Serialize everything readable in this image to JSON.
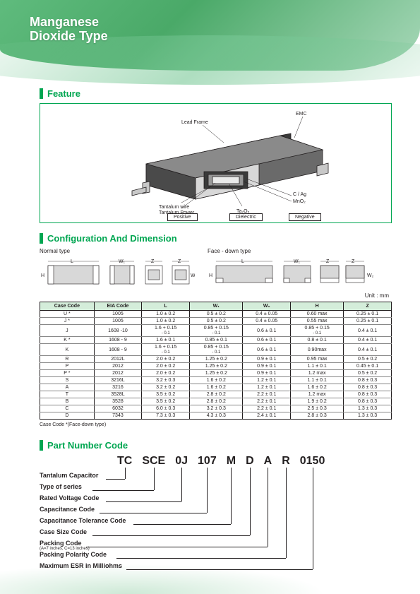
{
  "page": {
    "title_line1": "Manganese",
    "title_line2": "Dioxide Type"
  },
  "feature": {
    "section_title": "Feature",
    "callouts": {
      "lead_frame": "Lead Frame",
      "emc": "EMC",
      "tantalum_wire": "Tantalum wire",
      "tantalum_powder": "Tantalum Power",
      "ta2o5": "Ta₂O₅",
      "c_ag": "C / Ag",
      "mno2": "MnO₂"
    },
    "category_boxes": [
      "Positive",
      "Dielectric",
      "Negative"
    ],
    "diagram_colors": {
      "body_top": "#6a6a6a",
      "body_side": "#4a4a4a",
      "body_front": "#8a8a8a",
      "cut_face": "#d8d8d8",
      "lead": "#c8c8c8",
      "inner_dark": "#3a3a3a",
      "inner_core": "#eaeaea",
      "inner_band1": "#999999",
      "inner_band2": "#bdbdbd",
      "stroke": "#231f20"
    }
  },
  "config": {
    "section_title": "Configuration And Dimension",
    "normal_label": "Normal type",
    "face_down_label": "Face - down type",
    "unit_label": "Unit : mm",
    "headers": [
      "Case Code",
      "EIA Code",
      "L",
      "W₁",
      "W₂",
      "H",
      "Z"
    ],
    "rows": [
      [
        "U *",
        "1005",
        "1.0 ± 0.2",
        "0.5 ± 0.2",
        "0.4 ± 0.05",
        "0.60 max",
        "0.25 ± 0.1"
      ],
      [
        "J *",
        "1005",
        "1.0 ± 0.2",
        "0.5 ± 0.2",
        "0.4 ± 0.05",
        "0.55 max",
        "0.25 ± 0.1"
      ],
      [
        "J",
        "1608 -10",
        "1.6 + 0.15\n- 0.1",
        "0.85 + 0.15\n- 0.1",
        "0.6 ± 0.1",
        "0.85 + 0.15\n- 0.1",
        "0.4 ± 0.1"
      ],
      [
        "K *",
        "1608 - 9",
        "1.6 ± 0.1",
        "0.85 ± 0.1",
        "0.6 ± 0.1",
        "0.8 ± 0.1",
        "0.4 ± 0.1"
      ],
      [
        "K",
        "1608 - 9",
        "1.6 + 0.15\n- 0.1",
        "0.85 + 0.15\n- 0.1",
        "0.6 ± 0.1",
        "0.90max",
        "0.4 ± 0.1"
      ],
      [
        "R",
        "2012L",
        "2.0 ± 0.2",
        "1.25 ± 0.2",
        "0.9 ± 0.1",
        "0.95 max",
        "0.5 ± 0.2"
      ],
      [
        "P",
        "2012",
        "2.0 ± 0.2",
        "1.25 ± 0.2",
        "0.9 ± 0.1",
        "1.1 ± 0.1",
        "0.45 ± 0.1"
      ],
      [
        "P *",
        "2012",
        "2.0 ± 0.2",
        "1.25 ± 0.2",
        "0.9 ± 0.1",
        "1.2 max",
        "0.5 ± 0.2"
      ],
      [
        "S",
        "3216L",
        "3.2 ± 0.3",
        "1.6 ± 0.2",
        "1.2 ± 0.1",
        "1.1 ± 0.1",
        "0.8 ± 0.3"
      ],
      [
        "A",
        "3216",
        "3.2 ± 0.2",
        "1.6 ± 0.2",
        "1.2 ± 0.1",
        "1.6 ± 0.2",
        "0.8 ± 0.3"
      ],
      [
        "T",
        "3528L",
        "3.5 ± 0.2",
        "2.8 ± 0.2",
        "2.2 ± 0.1",
        "1.2 max",
        "0.8 ± 0.3"
      ],
      [
        "B",
        "3528",
        "3.5 ± 0.2",
        "2.8 ± 0.2",
        "2.2 ± 0.1",
        "1.9 ± 0.2",
        "0.8 ± 0.3"
      ],
      [
        "C",
        "6032",
        "6.0 ± 0.3",
        "3.2 ± 0.3",
        "2.2 ± 0.1",
        "2.5 ± 0.3",
        "1.3 ± 0.3"
      ],
      [
        "D",
        "7343",
        "7.3 ± 0.3",
        "4.3 ± 0.3",
        "2.4 ± 0.1",
        "2.8 ± 0.3",
        "1.3 ± 0.3"
      ]
    ],
    "note": "Case Code *(Face-down type)",
    "table_colors": {
      "header_bg": "#d4edda",
      "border": "#231f20"
    }
  },
  "part_number": {
    "section_title": "Part Number Code",
    "segments": [
      "TC",
      "SCE",
      "0J",
      "107",
      "M",
      "D",
      "A",
      "R",
      "0150"
    ],
    "labels": [
      "Tantalum Capacitor",
      "Type of series",
      "Rated Voltage Code",
      "Capacitance Code",
      "Capacitance Tolerance Code",
      "Case Size Code",
      "Packing Code",
      "Packing Polarity Code",
      "Maximum ESR in Milliohms"
    ],
    "packing_sublabel": "(A=7 inches, C=13 inches)"
  }
}
